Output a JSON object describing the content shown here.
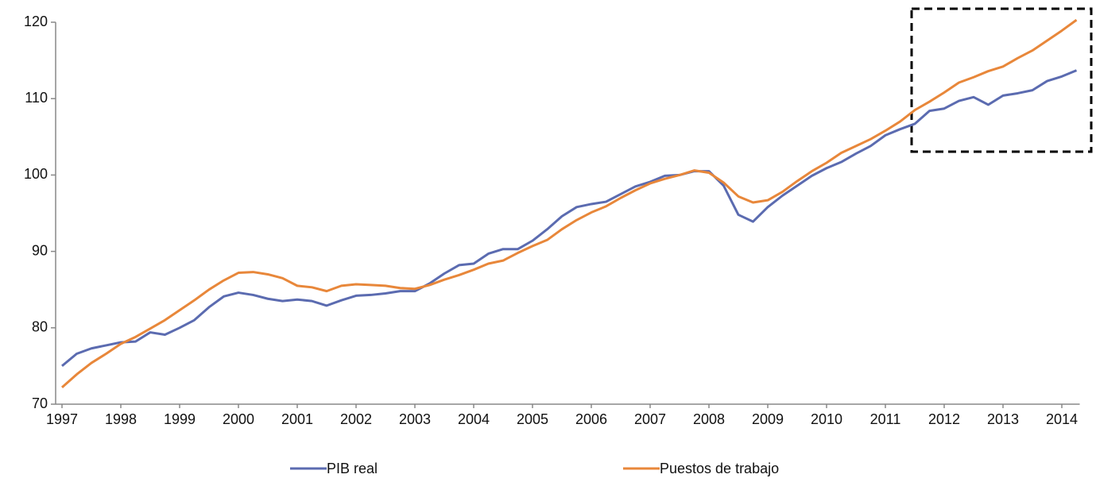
{
  "chart_data": {
    "type": "line",
    "categories": [
      "1997",
      null,
      null,
      null,
      "1998",
      null,
      null,
      null,
      "1999",
      null,
      null,
      null,
      "2000",
      null,
      null,
      null,
      "2001",
      null,
      null,
      null,
      "2002",
      null,
      null,
      null,
      "2003",
      null,
      null,
      null,
      "2004",
      null,
      null,
      null,
      "2005",
      null,
      null,
      null,
      "2006",
      null,
      null,
      null,
      "2007",
      null,
      null,
      null,
      "2008",
      null,
      null,
      null,
      "2009",
      null,
      null,
      null,
      "2010",
      null,
      null,
      null,
      "2011",
      null,
      null,
      null,
      "2012",
      null,
      null,
      null,
      "2013",
      null,
      null,
      null,
      "2014",
      null
    ],
    "series": [
      {
        "name": "PIB real",
        "color": "#5b6bb0",
        "values": [
          75.0,
          76.6,
          77.3,
          77.7,
          78.1,
          78.2,
          79.4,
          79.1,
          80.0,
          81.0,
          82.7,
          84.1,
          84.6,
          84.3,
          83.8,
          83.5,
          83.7,
          83.5,
          82.9,
          83.6,
          84.2,
          84.3,
          84.5,
          84.8,
          84.8,
          85.8,
          87.1,
          88.2,
          88.4,
          89.7,
          90.3,
          90.3,
          91.4,
          92.9,
          94.6,
          95.8,
          96.2,
          96.5,
          97.5,
          98.5,
          99.1,
          99.9,
          100.0,
          100.5,
          100.5,
          98.6,
          94.8,
          93.9,
          95.8,
          97.3,
          98.6,
          99.9,
          100.9,
          101.7,
          102.8,
          103.8,
          105.2,
          106.0,
          106.7,
          108.4,
          108.7,
          109.7,
          110.2,
          109.2,
          110.4,
          110.7,
          111.1,
          112.3,
          112.9,
          113.7
        ]
      },
      {
        "name": "Puestos de trabajo",
        "color": "#e8873a",
        "values": [
          72.2,
          73.9,
          75.4,
          76.6,
          77.9,
          78.8,
          79.9,
          81.0,
          82.3,
          83.6,
          85.0,
          86.2,
          87.2,
          87.3,
          87.0,
          86.5,
          85.5,
          85.3,
          84.8,
          85.5,
          85.7,
          85.6,
          85.5,
          85.2,
          85.1,
          85.6,
          86.3,
          86.9,
          87.6,
          88.4,
          88.8,
          89.8,
          90.7,
          91.5,
          92.9,
          94.1,
          95.1,
          95.9,
          97.0,
          98.0,
          98.9,
          99.5,
          100.0,
          100.6,
          100.3,
          99.0,
          97.2,
          96.4,
          96.7,
          97.8,
          99.2,
          100.5,
          101.6,
          102.9,
          103.8,
          104.7,
          105.8,
          107.0,
          108.5,
          109.6,
          110.8,
          112.1,
          112.8,
          113.6,
          114.2,
          115.3,
          116.3,
          117.6,
          118.9,
          120.3
        ]
      }
    ],
    "ylim": [
      70,
      120
    ],
    "yticks": [
      70,
      80,
      90,
      100,
      110,
      120
    ],
    "grid": false,
    "legend": "bottom"
  }
}
